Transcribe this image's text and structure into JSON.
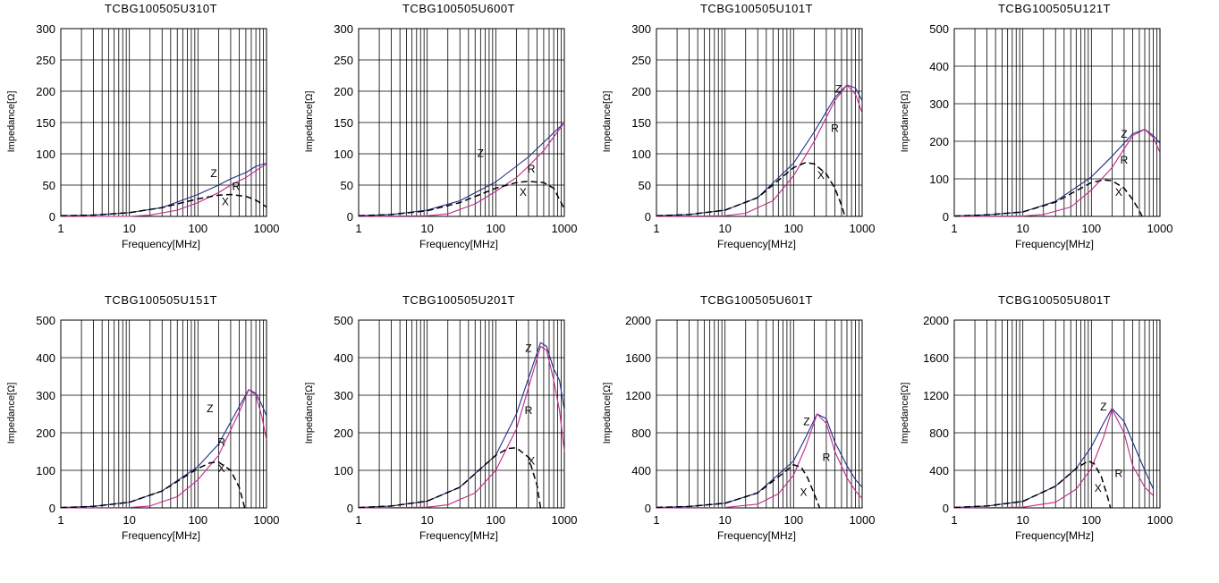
{
  "chart_data": [
    {
      "type": "line",
      "title": "TCBG100505U310T",
      "xlabel": "Frequency[MHz]",
      "ylabel": "Impedance[Ω]",
      "xscale": "log",
      "xlim": [
        1,
        1000
      ],
      "ylim": [
        0,
        300
      ],
      "xticks": [
        "1",
        "10",
        "100",
        "1000"
      ],
      "yticks": [
        "0",
        "50",
        "100",
        "150",
        "200",
        "250",
        "300"
      ],
      "grid": true,
      "series": [
        {
          "name": "Z",
          "color": "#1f2d8a",
          "dash": false,
          "x": [
            1,
            3,
            10,
            30,
            100,
            200,
            300,
            500,
            700,
            1000
          ],
          "y": [
            1,
            2,
            6,
            14,
            35,
            50,
            60,
            70,
            80,
            85
          ]
        },
        {
          "name": "R",
          "color": "#c0288a",
          "dash": false,
          "x": [
            1,
            10,
            20,
            50,
            100,
            200,
            300,
            500,
            700,
            1000
          ],
          "y": [
            0,
            0,
            2,
            10,
            22,
            38,
            50,
            62,
            73,
            84
          ]
        },
        {
          "name": "X",
          "color": "#000000",
          "dash": true,
          "x": [
            1,
            3,
            10,
            30,
            100,
            200,
            300,
            500,
            700,
            1000
          ],
          "y": [
            1,
            2,
            6,
            14,
            28,
            34,
            35,
            32,
            26,
            15
          ]
        }
      ],
      "annotations": [
        {
          "text": "Z",
          "x": 170,
          "y": 63
        },
        {
          "text": "R",
          "x": 360,
          "y": 42
        },
        {
          "text": "X",
          "x": 250,
          "y": 18
        }
      ]
    },
    {
      "type": "line",
      "title": "TCBG100505U600T",
      "xlabel": "Frequency[MHz]",
      "ylabel": "Impedance[Ω]",
      "xscale": "log",
      "xlim": [
        1,
        1000
      ],
      "ylim": [
        0,
        300
      ],
      "xticks": [
        "1",
        "10",
        "100",
        "1000"
      ],
      "yticks": [
        "0",
        "50",
        "100",
        "150",
        "200",
        "250",
        "300"
      ],
      "grid": true,
      "series": [
        {
          "name": "Z",
          "color": "#1f2d8a",
          "dash": false,
          "x": [
            1,
            3,
            10,
            30,
            100,
            300,
            1000
          ],
          "y": [
            1,
            3,
            10,
            25,
            55,
            95,
            150
          ]
        },
        {
          "name": "R",
          "color": "#c0288a",
          "dash": false,
          "x": [
            1,
            10,
            20,
            50,
            100,
            200,
            300,
            500,
            1000
          ],
          "y": [
            0,
            1,
            4,
            20,
            40,
            62,
            80,
            105,
            150
          ]
        },
        {
          "name": "X",
          "color": "#000000",
          "dash": true,
          "x": [
            1,
            3,
            10,
            30,
            100,
            200,
            300,
            500,
            700,
            1000
          ],
          "y": [
            1,
            3,
            9,
            22,
            45,
            54,
            56,
            54,
            45,
            12
          ]
        }
      ],
      "annotations": [
        {
          "text": "Z",
          "x": 60,
          "y": 95
        },
        {
          "text": "R",
          "x": 330,
          "y": 70
        },
        {
          "text": "X",
          "x": 250,
          "y": 33
        }
      ]
    },
    {
      "type": "line",
      "title": "TCBG100505U101T",
      "xlabel": "Frequency[MHz]",
      "ylabel": "Impedance[Ω]",
      "xscale": "log",
      "xlim": [
        1,
        1000
      ],
      "ylim": [
        0,
        300
      ],
      "xticks": [
        "1",
        "10",
        "100",
        "1000"
      ],
      "yticks": [
        "0",
        "50",
        "100",
        "150",
        "200",
        "250",
        "300"
      ],
      "grid": true,
      "series": [
        {
          "name": "Z",
          "color": "#1f2d8a",
          "dash": false,
          "x": [
            1,
            3,
            10,
            30,
            100,
            200,
            400,
            600,
            800,
            1000
          ],
          "y": [
            1,
            3,
            10,
            30,
            85,
            135,
            190,
            210,
            205,
            185
          ]
        },
        {
          "name": "R",
          "color": "#c0288a",
          "dash": false,
          "x": [
            1,
            10,
            20,
            50,
            100,
            200,
            400,
            600,
            800,
            1000
          ],
          "y": [
            0,
            1,
            5,
            25,
            65,
            120,
            185,
            210,
            195,
            165
          ]
        },
        {
          "name": "X",
          "color": "#000000",
          "dash": true,
          "x": [
            1,
            3,
            10,
            30,
            100,
            150,
            200,
            300,
            400,
            500,
            560
          ],
          "y": [
            1,
            3,
            10,
            30,
            78,
            86,
            84,
            68,
            45,
            18,
            0
          ]
        }
      ],
      "annotations": [
        {
          "text": "Z",
          "x": 450,
          "y": 198
        },
        {
          "text": "R",
          "x": 400,
          "y": 135
        },
        {
          "text": "X",
          "x": 250,
          "y": 60
        }
      ]
    },
    {
      "type": "line",
      "title": "TCBG100505U121T",
      "xlabel": "Frequency[MHz]",
      "ylabel": "Impedance[Ω]",
      "xscale": "log",
      "xlim": [
        1,
        1000
      ],
      "ylim": [
        0,
        500
      ],
      "xticks": [
        "1",
        "10",
        "100",
        "1000"
      ],
      "yticks": [
        "0",
        "100",
        "200",
        "300",
        "400",
        "500"
      ],
      "grid": true,
      "series": [
        {
          "name": "Z",
          "color": "#1f2d8a",
          "dash": false,
          "x": [
            1,
            3,
            10,
            30,
            100,
            200,
            400,
            600,
            800,
            1000
          ],
          "y": [
            1,
            4,
            12,
            40,
            105,
            160,
            220,
            232,
            215,
            195
          ]
        },
        {
          "name": "R",
          "color": "#c0288a",
          "dash": false,
          "x": [
            1,
            10,
            20,
            50,
            100,
            200,
            400,
            600,
            800,
            1000
          ],
          "y": [
            0,
            1,
            5,
            25,
            70,
            130,
            215,
            232,
            210,
            170
          ]
        },
        {
          "name": "X",
          "color": "#000000",
          "dash": true,
          "x": [
            1,
            3,
            10,
            30,
            100,
            150,
            200,
            300,
            400,
            500,
            550
          ],
          "y": [
            1,
            4,
            12,
            38,
            90,
            97,
            95,
            75,
            45,
            15,
            0
          ]
        }
      ],
      "annotations": [
        {
          "text": "Z",
          "x": 300,
          "y": 210
        },
        {
          "text": "R",
          "x": 300,
          "y": 140
        },
        {
          "text": "X",
          "x": 250,
          "y": 55
        }
      ]
    },
    {
      "type": "line",
      "title": "TCBG100505U151T",
      "xlabel": "Frequency[MHz]",
      "ylabel": "Impedance[Ω]",
      "xscale": "log",
      "xlim": [
        1,
        1000
      ],
      "ylim": [
        0,
        500
      ],
      "xticks": [
        "1",
        "10",
        "100",
        "1000"
      ],
      "yticks": [
        "0",
        "100",
        "200",
        "300",
        "400",
        "500"
      ],
      "grid": true,
      "series": [
        {
          "name": "Z",
          "color": "#1f2d8a",
          "dash": false,
          "x": [
            1,
            3,
            10,
            30,
            100,
            200,
            400,
            550,
            700,
            850,
            1000
          ],
          "y": [
            1,
            4,
            15,
            45,
            110,
            170,
            270,
            315,
            305,
            275,
            245
          ]
        },
        {
          "name": "R",
          "color": "#c0288a",
          "dash": false,
          "x": [
            1,
            10,
            20,
            50,
            100,
            200,
            400,
            550,
            700,
            850,
            1000
          ],
          "y": [
            0,
            1,
            5,
            30,
            75,
            140,
            255,
            315,
            300,
            245,
            180
          ]
        },
        {
          "name": "X",
          "color": "#000000",
          "dash": true,
          "x": [
            1,
            3,
            10,
            30,
            100,
            150,
            200,
            300,
            400,
            480
          ],
          "y": [
            1,
            4,
            15,
            45,
            105,
            120,
            122,
            100,
            55,
            0
          ]
        }
      ],
      "annotations": [
        {
          "text": "Z",
          "x": 150,
          "y": 255
        },
        {
          "text": "R",
          "x": 220,
          "y": 165
        },
        {
          "text": "X",
          "x": 220,
          "y": 95
        }
      ]
    },
    {
      "type": "line",
      "title": "TCBG100505U201T",
      "xlabel": "Frequency[MHz]",
      "ylabel": "Impedance[Ω]",
      "xscale": "log",
      "xlim": [
        1,
        1000
      ],
      "ylim": [
        0,
        500
      ],
      "xticks": [
        "1",
        "10",
        "100",
        "1000"
      ],
      "yticks": [
        "0",
        "100",
        "200",
        "300",
        "400",
        "500"
      ],
      "grid": true,
      "series": [
        {
          "name": "Z",
          "color": "#1f2d8a",
          "dash": false,
          "x": [
            1,
            3,
            10,
            30,
            100,
            200,
            300,
            450,
            550,
            700,
            850,
            1000
          ],
          "y": [
            1,
            5,
            18,
            55,
            140,
            250,
            345,
            440,
            430,
            370,
            340,
            260
          ]
        },
        {
          "name": "R",
          "color": "#c0288a",
          "dash": false,
          "x": [
            1,
            10,
            20,
            50,
            100,
            200,
            300,
            450,
            550,
            700,
            850,
            1000
          ],
          "y": [
            0,
            2,
            8,
            40,
            100,
            210,
            320,
            430,
            420,
            340,
            260,
            150
          ]
        },
        {
          "name": "X",
          "color": "#000000",
          "dash": true,
          "x": [
            1,
            3,
            10,
            30,
            100,
            150,
            200,
            300,
            400,
            450
          ],
          "y": [
            1,
            5,
            18,
            55,
            140,
            158,
            160,
            135,
            60,
            0
          ]
        }
      ],
      "annotations": [
        {
          "text": "Z",
          "x": 300,
          "y": 415
        },
        {
          "text": "R",
          "x": 300,
          "y": 250
        },
        {
          "text": "X",
          "x": 330,
          "y": 115
        }
      ]
    },
    {
      "type": "line",
      "title": "TCBG100505U601T",
      "xlabel": "Frequency[MHz]",
      "ylabel": "Impedance[Ω]",
      "xscale": "log",
      "xlim": [
        1,
        1000
      ],
      "ylim": [
        0,
        2000
      ],
      "xticks": [
        "1",
        "10",
        "100",
        "1000"
      ],
      "yticks": [
        "0",
        "400",
        "800",
        "1200",
        "1600",
        "2000"
      ],
      "grid": true,
      "series": [
        {
          "name": "Z",
          "color": "#1f2d8a",
          "dash": false,
          "x": [
            1,
            3,
            10,
            30,
            100,
            150,
            220,
            300,
            400,
            600,
            800,
            1000
          ],
          "y": [
            5,
            15,
            50,
            160,
            500,
            750,
            1000,
            950,
            700,
            450,
            300,
            220
          ]
        },
        {
          "name": "R",
          "color": "#c0288a",
          "dash": false,
          "x": [
            1,
            10,
            30,
            60,
            100,
            150,
            220,
            300,
            400,
            600,
            800,
            1000
          ],
          "y": [
            0,
            5,
            40,
            150,
            350,
            650,
            1000,
            900,
            600,
            320,
            180,
            100
          ]
        },
        {
          "name": "X",
          "color": "#000000",
          "dash": true,
          "x": [
            1,
            3,
            10,
            30,
            60,
            100,
            130,
            160,
            200,
            240
          ],
          "y": [
            5,
            15,
            50,
            160,
            330,
            460,
            430,
            320,
            150,
            0
          ]
        }
      ],
      "annotations": [
        {
          "text": "Z",
          "x": 155,
          "y": 880
        },
        {
          "text": "R",
          "x": 300,
          "y": 500
        },
        {
          "text": "X",
          "x": 140,
          "y": 130
        }
      ]
    },
    {
      "type": "line",
      "title": "TCBG100505U801T",
      "xlabel": "Frequency[MHz]",
      "ylabel": "Impedance[Ω]",
      "xscale": "log",
      "xlim": [
        1,
        1000
      ],
      "ylim": [
        0,
        2000
      ],
      "xticks": [
        "1",
        "10",
        "100",
        "1000"
      ],
      "yticks": [
        "0",
        "400",
        "800",
        "1200",
        "1600",
        "2000"
      ],
      "grid": true,
      "series": [
        {
          "name": "Z",
          "color": "#1f2d8a",
          "dash": false,
          "x": [
            1,
            3,
            10,
            30,
            60,
            100,
            150,
            200,
            300,
            400,
            600,
            800
          ],
          "y": [
            5,
            20,
            70,
            230,
            420,
            650,
            900,
            1060,
            920,
            700,
            400,
            200
          ]
        },
        {
          "name": "R",
          "color": "#c0288a",
          "dash": false,
          "x": [
            1,
            10,
            30,
            60,
            100,
            150,
            200,
            300,
            400,
            600,
            800
          ],
          "y": [
            0,
            8,
            60,
            200,
            420,
            750,
            1050,
            800,
            450,
            220,
            130
          ]
        },
        {
          "name": "X",
          "color": "#000000",
          "dash": true,
          "x": [
            1,
            3,
            10,
            30,
            60,
            90,
            110,
            140,
            170,
            190
          ],
          "y": [
            5,
            20,
            70,
            230,
            420,
            500,
            470,
            330,
            130,
            0
          ]
        }
      ],
      "annotations": [
        {
          "text": "Z",
          "x": 150,
          "y": 1040
        },
        {
          "text": "R",
          "x": 250,
          "y": 330
        },
        {
          "text": "X",
          "x": 125,
          "y": 170
        }
      ]
    }
  ]
}
